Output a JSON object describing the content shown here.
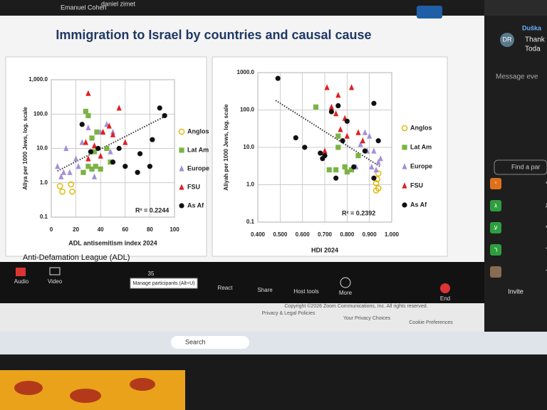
{
  "video_strip": [
    "Emanuel Cohen",
    "daniel zimet"
  ],
  "slide": {
    "title": "Immigration to Israel by countries and causal cause",
    "source": "Anti-Defamation League (ADL)"
  },
  "chart_data": [
    {
      "type": "scatter",
      "xlabel": "ADL antisemitism index 2024",
      "ylabel": "Aliya per 1000 Jews, log. scale",
      "annotation": "R² = 0.2244",
      "log_y": true,
      "grid": true,
      "legend": "right",
      "xlim": [
        0,
        100
      ],
      "xticks": [
        0,
        20,
        40,
        60,
        80,
        100
      ],
      "ylim": [
        0.1,
        1000
      ],
      "yticks": [
        0.1,
        {
          "value": 1,
          "label": "1.0"
        },
        {
          "value": 10,
          "label": "10.0"
        },
        {
          "value": 100,
          "label": "100.0"
        },
        {
          "value": 1000,
          "label": "1,000.0"
        }
      ],
      "series": [
        {
          "name": "Anglos",
          "color": "#e0b800",
          "marker": "open-circle",
          "x": [
            7,
            9,
            17,
            16
          ],
          "values": [
            0.8,
            0.55,
            0.55,
            0.9
          ]
        },
        {
          "name": "Lat Am",
          "color": "#7cb342",
          "marker": "square",
          "x": [
            28,
            30,
            33,
            37,
            35,
            30,
            33,
            26,
            45,
            48,
            40,
            36
          ],
          "values": [
            120,
            90,
            20,
            30,
            8,
            3,
            2.5,
            2,
            10,
            4,
            2.5,
            3
          ]
        },
        {
          "name": "Europe",
          "color": "#a48fd6",
          "marker": "triangle",
          "x": [
            5,
            10,
            15,
            20,
            12,
            25,
            30,
            40,
            45,
            50,
            48,
            8,
            22,
            35
          ],
          "values": [
            3,
            2,
            2,
            5,
            10,
            15,
            40,
            30,
            50,
            30,
            8,
            1.5,
            3,
            1.5
          ]
        },
        {
          "name": "FSU",
          "color": "#e02020",
          "marker": "triangle",
          "x": [
            30,
            42,
            47,
            50,
            55,
            35,
            28,
            40,
            60,
            30
          ],
          "values": [
            400,
            30,
            45,
            25,
            150,
            12,
            15,
            6,
            15,
            5
          ]
        },
        {
          "name": "As Af",
          "color": "#111111",
          "marker": "circle",
          "x": [
            25,
            38,
            50,
            55,
            60,
            72,
            82,
            88,
            92,
            80,
            32,
            70
          ],
          "values": [
            50,
            10,
            4,
            10,
            3,
            7,
            18,
            150,
            90,
            3,
            8,
            2
          ]
        }
      ],
      "trendline": {
        "x": [
          5,
          92
        ],
        "y": [
          2.2,
          85
        ]
      }
    },
    {
      "type": "scatter",
      "xlabel": "HDI 2024",
      "ylabel": "Aliyah per 1000 Jews, log. scale",
      "annotation": "R² = 0.2392",
      "log_y": true,
      "grid": true,
      "legend": "right",
      "xlim": [
        0.4,
        1.0
      ],
      "xticks": [
        {
          "value": 0.4,
          "label": "0.400"
        },
        {
          "value": 0.5,
          "label": "0.500"
        },
        {
          "value": 0.6,
          "label": "0.600"
        },
        {
          "value": 0.7,
          "label": "0.700"
        },
        {
          "value": 0.8,
          "label": "0.800"
        },
        {
          "value": 0.9,
          "label": "0.900"
        },
        {
          "value": 1.0,
          "label": "1.000"
        }
      ],
      "ylim": [
        0.1,
        1000
      ],
      "yticks": [
        0.1,
        {
          "value": 1,
          "label": "1.0"
        },
        {
          "value": 10,
          "label": "10.0"
        },
        {
          "value": 100,
          "label": "100.0"
        },
        {
          "value": 1000,
          "label": "1000.0"
        }
      ],
      "series": [
        {
          "name": "Anglos",
          "color": "#e0b800",
          "marker": "open-circle",
          "x": [
            0.93,
            0.94,
            0.935,
            0.94,
            0.93
          ],
          "values": [
            0.7,
            0.8,
            1.4,
            2,
            1.1
          ]
        },
        {
          "name": "Lat Am",
          "color": "#7cb342",
          "marker": "square",
          "x": [
            0.66,
            0.76,
            0.79,
            0.72,
            0.75,
            0.8,
            0.82,
            0.76,
            0.85
          ],
          "values": [
            120,
            20,
            3,
            2.5,
            2.5,
            2.2,
            2.5,
            10,
            6
          ]
        },
        {
          "name": "Europe",
          "color": "#a48fd6",
          "marker": "triangle",
          "x": [
            0.88,
            0.9,
            0.92,
            0.94,
            0.95,
            0.89,
            0.86,
            0.93,
            0.84,
            0.91
          ],
          "values": [
            25,
            20,
            8,
            4,
            5,
            8,
            12,
            2.5,
            3,
            3
          ]
        },
        {
          "name": "FSU",
          "color": "#e02020",
          "marker": "triangle",
          "x": [
            0.71,
            0.76,
            0.82,
            0.75,
            0.73,
            0.79,
            0.8,
            0.85,
            0.77,
            0.7,
            0.87
          ],
          "values": [
            400,
            250,
            400,
            80,
            120,
            60,
            20,
            25,
            30,
            8,
            15
          ]
        },
        {
          "name": "As Af",
          "color": "#111111",
          "marker": "circle",
          "x": [
            0.49,
            0.57,
            0.61,
            0.68,
            0.7,
            0.73,
            0.76,
            0.8,
            0.78,
            0.88,
            0.92,
            0.94,
            0.83,
            0.92,
            0.75,
            0.69
          ],
          "values": [
            700,
            18,
            10,
            7,
            6,
            90,
            130,
            50,
            15,
            8,
            150,
            15,
            3,
            1.5,
            1.5,
            5
          ]
        }
      ],
      "trendline": {
        "x": [
          0.48,
          0.95
        ],
        "y": [
          180,
          3
        ]
      }
    }
  ],
  "toolbar": {
    "audio": "Audio",
    "video": "Video",
    "participants_count": 35,
    "tooltip": "Manage participants (Alt+U)",
    "react": "React",
    "share": "Share",
    "host_tools": "Host tools",
    "more": "More",
    "end": "End"
  },
  "footer": {
    "copyright": "Copyright ©2026 Zoom Communications, Inc. All rights reserved.",
    "privacy": "Privacy & Legal Policies",
    "choices": "Your Privacy Choices",
    "cookies": "Cookie Preferences"
  },
  "chat": {
    "sender": "Duška",
    "avatar": "DR",
    "messages": [
      "Thank",
      "Toda"
    ],
    "placeholder": "Message eve",
    "search": "Find a par",
    "invite": "Invite",
    "people": [
      {
        "avatar": "י",
        "name": "יוסי אורי"
      },
      {
        "avatar": "ג",
        "name": "נילי קינג"
      },
      {
        "avatar": "ע",
        "name": "עזי לוי"
      },
      {
        "avatar": "ר",
        "name": "רינה בר-אור"
      },
      {
        "avatar": "",
        "name": "רה בגליקטר"
      }
    ]
  },
  "taskbar": {
    "search": "Search"
  }
}
